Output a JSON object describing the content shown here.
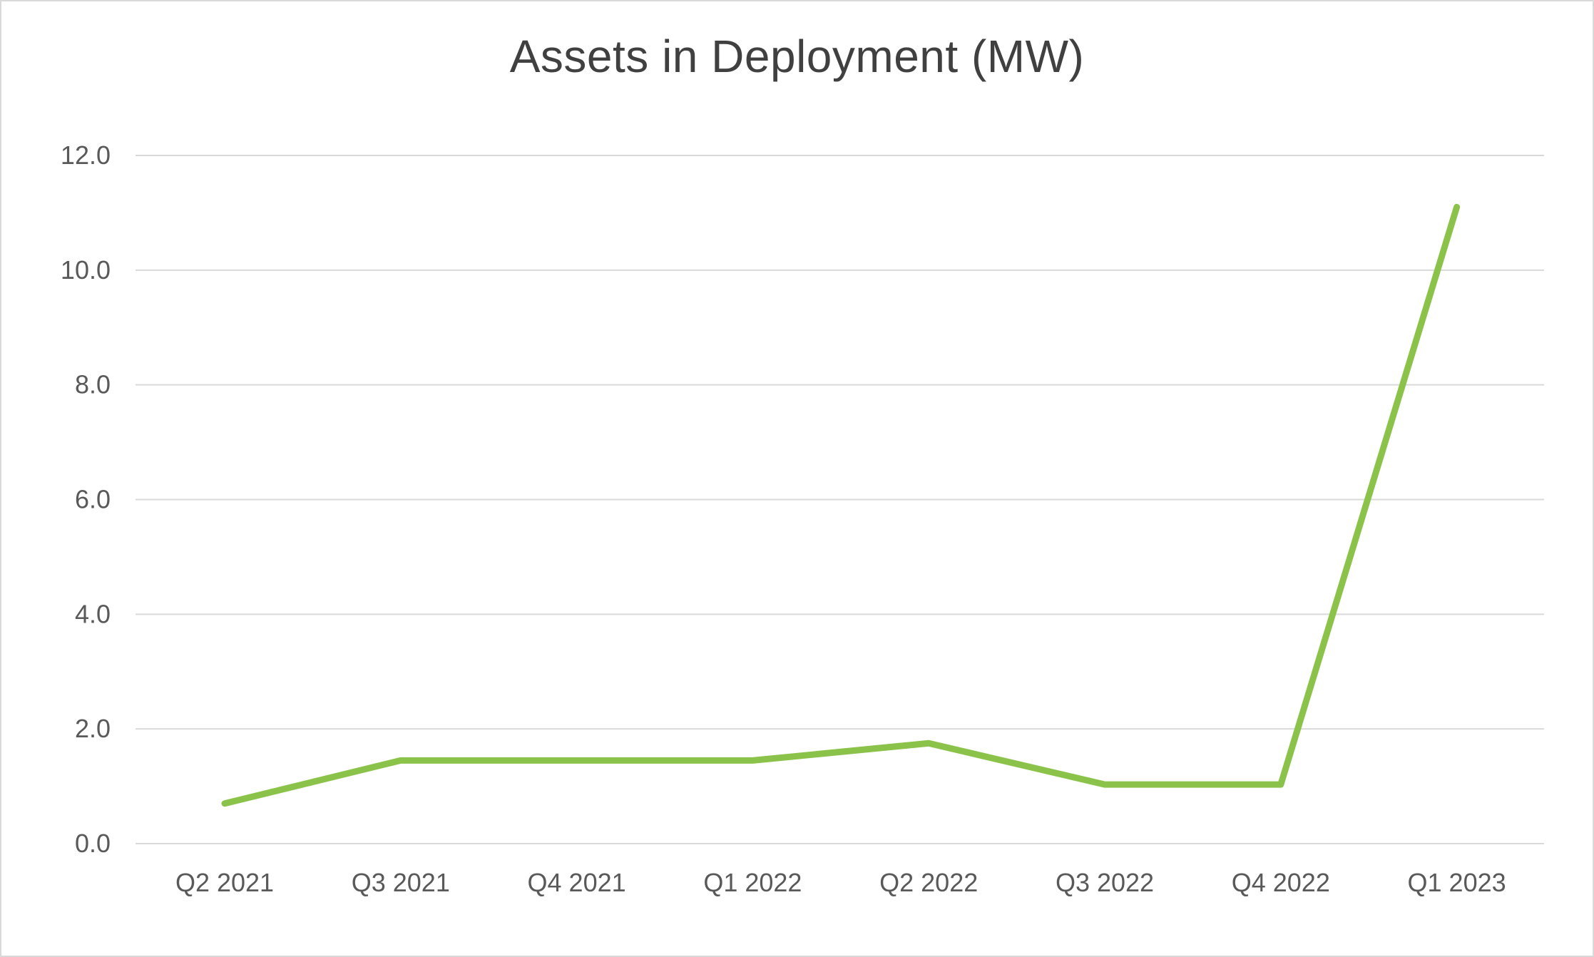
{
  "chart_data": {
    "type": "line",
    "title": "Assets in Deployment (MW)",
    "xlabel": "",
    "ylabel": "",
    "categories": [
      "Q2 2021",
      "Q3 2021",
      "Q4 2021",
      "Q1 2022",
      "Q2 2022",
      "Q3 2022",
      "Q4 2022",
      "Q1 2023"
    ],
    "series": [
      {
        "values": [
          0.7,
          1.45,
          1.45,
          1.45,
          1.75,
          1.03,
          1.03,
          11.1
        ],
        "color": "#8BC34A"
      }
    ],
    "ylim": [
      0,
      12
    ],
    "yticks": [
      0,
      2,
      4,
      6,
      8,
      10,
      12
    ],
    "ytick_labels": [
      "0.0",
      "2.0",
      "4.0",
      "6.0",
      "8.0",
      "10.0",
      "12.0"
    ],
    "grid": true,
    "legend": "none",
    "colors": {
      "gridline": "#d9d9d9",
      "text": "#595959",
      "title": "#404040",
      "border": "#d9d9d9"
    }
  }
}
